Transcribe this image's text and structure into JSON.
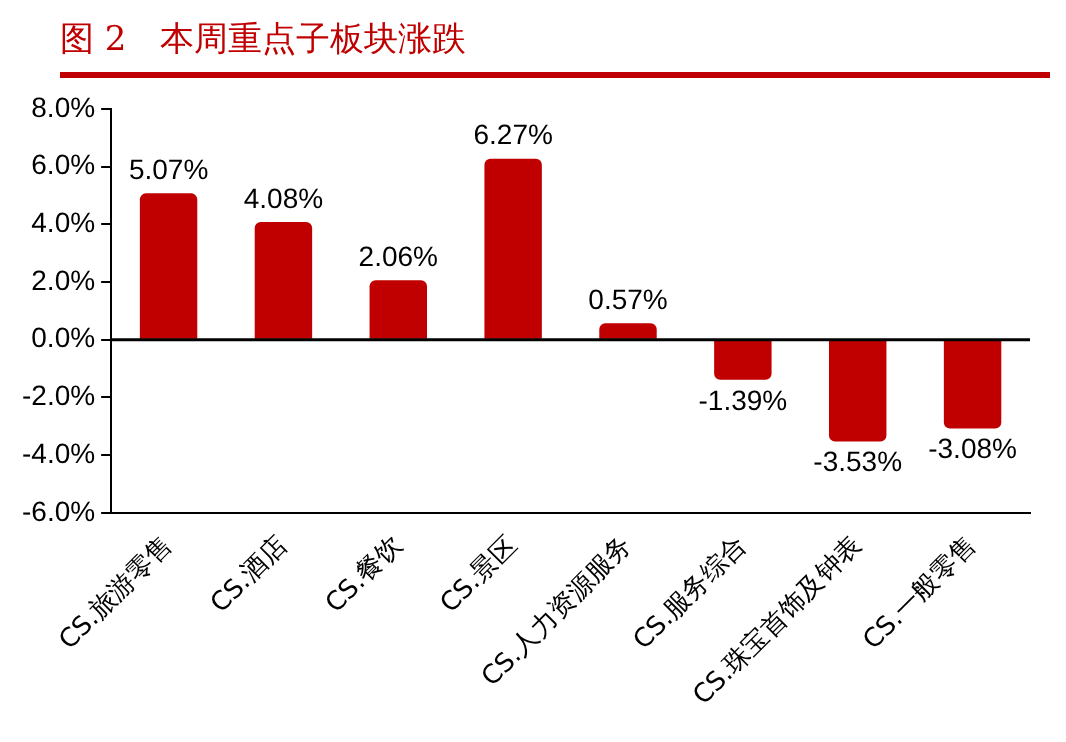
{
  "chart_data": {
    "type": "bar",
    "title": "图 2　本周重点子板块涨跌",
    "categories": [
      "CS.旅游零售",
      "CS.酒店",
      "CS.餐饮",
      "CS.景区",
      "CS.人力资源服务",
      "CS.服务综合",
      "CS.珠宝首饰及钟表",
      "CS.一般零售"
    ],
    "values": [
      5.07,
      4.08,
      2.06,
      6.27,
      0.57,
      -1.39,
      -3.53,
      -3.08
    ],
    "color": "#c00000",
    "ylim": [
      -6,
      8
    ],
    "yticks": [
      {
        "value": -6,
        "label": "-6.0%"
      },
      {
        "value": -4,
        "label": "-4.0%"
      },
      {
        "value": -2,
        "label": "-2.0%"
      },
      {
        "value": 0,
        "label": "0.0%"
      },
      {
        "value": 2,
        "label": "2.0%"
      },
      {
        "value": 4,
        "label": "4.0%"
      },
      {
        "value": 6,
        "label": "6.0%"
      },
      {
        "value": 8,
        "label": "8.0%"
      }
    ],
    "value_labels": [
      "5.07%",
      "4.08%",
      "2.06%",
      "6.27%",
      "0.57%",
      "-1.39%",
      "-3.53%",
      "-3.08%"
    ],
    "ref_lines": [
      {
        "axis": "y",
        "value": 0,
        "color": "#000000"
      }
    ],
    "legend": false
  }
}
